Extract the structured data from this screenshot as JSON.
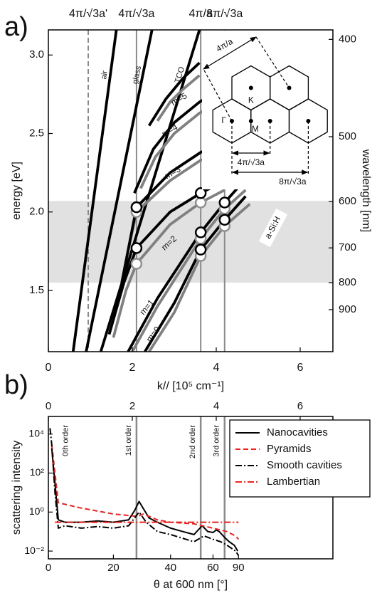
{
  "chart_data": [
    {
      "type": "line",
      "label": "a)",
      "xlabel": "k// [10⁵ cm⁻¹]",
      "ylabel": "energy [eV]",
      "y2label": "wavelength [nm]",
      "xlim": [
        0,
        6.78
      ],
      "xticks": [
        0,
        2,
        4,
        6
      ],
      "ylim": [
        1.11,
        3.16
      ],
      "yticks": [
        1.5,
        {
          "value": 2,
          "label": "2.0"
        },
        2.5,
        {
          "value": 3,
          "label": "3.0"
        }
      ],
      "y2scale": "reciprocal",
      "y2ticks": [
        400,
        500,
        600,
        700,
        800,
        900
      ],
      "x2ticks": [
        {
          "value": 0.95,
          "label": "4π/√3a'"
        },
        {
          "value": 2.1,
          "label": "4π/√3a"
        },
        {
          "value": 3.63,
          "label": "4π/a"
        },
        {
          "value": 4.2,
          "label": "8π/√3a"
        }
      ],
      "vline_styles": [
        "dashed",
        "solid",
        "solid",
        "solid"
      ],
      "band": [
        1.55,
        2.07
      ],
      "series": [
        {
          "name": "air",
          "color": "#000000",
          "x": [
            0.59,
            1.62
          ],
          "values": [
            1.11,
            3.16
          ]
        },
        {
          "name": "glass",
          "color": "#000000",
          "x": [
            0.9,
            2.47
          ],
          "values": [
            1.11,
            3.16
          ]
        },
        {
          "name": "TCO",
          "color": "#000000",
          "x": [
            1.25,
            3.6
          ],
          "values": [
            1.11,
            3.16
          ]
        },
        {
          "color": "#808080",
          "x": [
            2.4,
            3.0,
            3.63,
            4.2,
            4.8
          ],
          "values": [
            1.11,
            1.36,
            1.72,
            1.91,
            2.05
          ]
        },
        {
          "color": "#808080",
          "x": [
            2.0,
            2.6,
            3.63,
            4.2,
            4.7
          ],
          "values": [
            1.11,
            1.4,
            1.83,
            2.02,
            2.14
          ]
        },
        {
          "color": "#808080",
          "x": [
            1.55,
            1.85,
            2.1,
            2.9,
            3.63,
            4.2
          ],
          "values": [
            1.2,
            1.5,
            1.67,
            1.92,
            2.06,
            2.14
          ]
        },
        {
          "color": "#808080",
          "x": [
            1.9,
            2.1,
            2.9,
            3.63,
            4.05
          ],
          "values": [
            1.75,
            2.0,
            2.2,
            2.33,
            2.37
          ]
        },
        {
          "color": "#808080",
          "x": [
            2.2,
            2.55,
            3.0,
            3.6,
            3.9
          ],
          "values": [
            2.15,
            2.35,
            2.5,
            2.63,
            2.67
          ]
        },
        {
          "color": "#808080",
          "x": [
            2.6,
            2.9,
            3.2,
            3.6
          ],
          "values": [
            2.58,
            2.7,
            2.78,
            2.87
          ]
        },
        {
          "color": "#000000",
          "x": [
            2.3,
            3.0,
            3.63,
            4.2,
            4.7
          ],
          "values": [
            1.11,
            1.42,
            1.76,
            1.95,
            2.1
          ]
        },
        {
          "color": "#000000",
          "x": [
            1.9,
            2.6,
            3.63,
            4.2,
            4.6
          ],
          "values": [
            1.11,
            1.45,
            1.87,
            2.06,
            2.18
          ]
        },
        {
          "color": "#000000",
          "x": [
            1.45,
            1.8,
            2.1,
            2.9,
            3.63,
            4.2
          ],
          "values": [
            1.22,
            1.55,
            1.77,
            2.0,
            2.12,
            2.2
          ]
        },
        {
          "color": "#000000",
          "x": [
            1.75,
            2.1,
            2.9,
            3.63,
            4.0
          ],
          "values": [
            1.55,
            2.03,
            2.25,
            2.38,
            2.42
          ]
        },
        {
          "color": "#000000",
          "x": [
            2.05,
            2.5,
            3.0,
            3.6,
            3.85
          ],
          "values": [
            2.12,
            2.4,
            2.57,
            2.7,
            2.74
          ]
        },
        {
          "color": "#000000",
          "x": [
            2.4,
            2.8,
            3.2,
            3.6
          ],
          "values": [
            2.55,
            2.72,
            2.85,
            2.95
          ]
        },
        {
          "type": "scatter",
          "color": "#909090",
          "x": [
            2.1,
            2.1,
            3.63,
            3.63,
            3.63,
            4.2,
            4.2
          ],
          "values": [
            2.0,
            1.67,
            2.06,
            1.83,
            1.72,
            2.02,
            1.91
          ]
        },
        {
          "type": "scatter",
          "color": "#000000",
          "x": [
            2.1,
            2.1,
            3.63,
            3.63,
            3.63,
            4.2,
            4.2
          ],
          "values": [
            2.03,
            1.77,
            2.12,
            1.87,
            1.76,
            2.06,
            1.95
          ]
        }
      ],
      "mode_labels": [
        "m=0",
        "m=1",
        "m=2",
        "m=3",
        "m=4",
        "m=5"
      ],
      "material_label": "a-Si:H",
      "inset_labels": [
        "4π/a",
        "K",
        "Γ",
        "M",
        "4π/√3a",
        "8π/√3a"
      ]
    },
    {
      "type": "line",
      "label": "b)",
      "xlabel": "θ at 600 nm [°]",
      "ylabel": "scattering intensity",
      "xscale": "sine",
      "xticks": [
        0,
        20,
        40,
        60,
        90
      ],
      "x2lim": [
        0,
        6.78
      ],
      "x2ticks": [
        0,
        2,
        4,
        6
      ],
      "yscale": "log",
      "ylim": [
        0.004,
        80000
      ],
      "yticks": [
        {
          "value": 0.01,
          "label": "10⁻²"
        },
        {
          "value": 1,
          "label": "10⁰"
        },
        {
          "value": 100,
          "label": "10²"
        },
        {
          "value": 10000,
          "label": "10⁴"
        }
      ],
      "order_lines": [
        2.1,
        3.63,
        4.2
      ],
      "order_labels": [
        "0th order",
        "1st order",
        "2nd order",
        "3rd order"
      ],
      "legend": "upper right",
      "series": [
        {
          "name": "Nanocavities",
          "color": "#000000",
          "dash": "solid",
          "x": [
            1,
            2,
            3,
            5,
            10,
            15,
            20,
            25,
            27,
            28.5,
            30,
            32,
            35,
            40,
            45,
            50,
            52,
            54,
            57,
            60,
            62,
            64,
            68,
            72,
            78,
            85
          ],
          "values": [
            2000,
            30,
            0.4,
            0.3,
            0.3,
            0.35,
            0.3,
            0.4,
            1.2,
            3.5,
            1.5,
            0.5,
            0.3,
            0.15,
            0.1,
            0.07,
            0.12,
            0.2,
            0.1,
            0.09,
            0.12,
            0.1,
            0.05,
            0.03,
            0.02,
            0.01
          ]
        },
        {
          "name": "Pyramids",
          "color": "#e8231f",
          "dash": "dashed",
          "x": [
            1,
            2,
            3,
            5,
            10,
            20,
            28,
            30,
            35,
            40,
            50,
            60,
            70,
            80,
            90
          ],
          "values": [
            3000,
            100,
            3,
            2.5,
            1.6,
            0.8,
            0.6,
            0.8,
            0.4,
            0.3,
            0.25,
            0.15,
            0.1,
            0.06,
            0.04
          ]
        },
        {
          "name": "Smooth cavities",
          "color": "#000000",
          "dash": "dashdot",
          "x": [
            0.5,
            1,
            2,
            3,
            5,
            10,
            15,
            20,
            25,
            28.5,
            31,
            35,
            40,
            50,
            55,
            60,
            65,
            70,
            80,
            88
          ],
          "values": [
            20000,
            3000,
            10,
            0.15,
            0.2,
            0.15,
            0.18,
            0.15,
            0.2,
            1,
            0.3,
            0.1,
            0.07,
            0.03,
            0.06,
            0.04,
            0.03,
            0.02,
            0.01,
            0.006
          ]
        },
        {
          "name": "Lambertian",
          "color": "#e8231f",
          "dash": "dashdot",
          "x": [
            2,
            90
          ],
          "values": [
            0.3,
            0.3
          ]
        }
      ]
    }
  ]
}
